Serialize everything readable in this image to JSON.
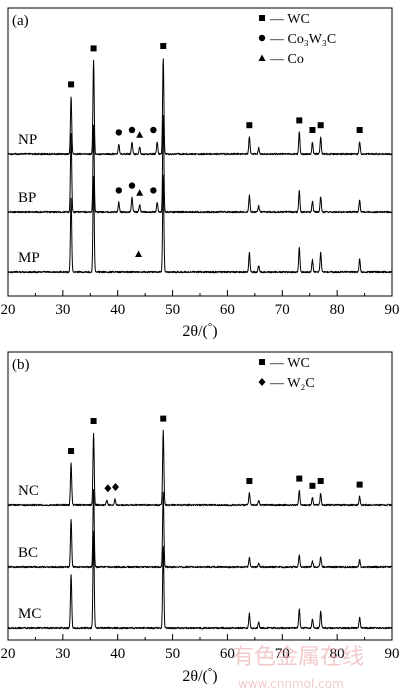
{
  "chart_data": [
    {
      "type": "line",
      "panel_label": "(a)",
      "xlabel_main": "2θ/(",
      "xlabel_unit": "°",
      "xlabel_end": ")",
      "ylabel": "",
      "xlim": [
        20,
        90
      ],
      "x_ticks": [
        "20",
        "30",
        "40",
        "50",
        "60",
        "70",
        "80",
        "90"
      ],
      "grid": false,
      "legend_position": "top-right",
      "legend": [
        {
          "marker": "square",
          "text": "— WC"
        },
        {
          "marker": "circle",
          "text": "— Co₃W₃C"
        },
        {
          "marker": "triangle",
          "text": "— Co"
        }
      ],
      "series": [
        {
          "name": "NP",
          "peaks": [
            {
              "x": 31.5,
              "h": 0.48
            },
            {
              "x": 35.6,
              "h": 0.78
            },
            {
              "x": 40.2,
              "h": 0.08
            },
            {
              "x": 42.6,
              "h": 0.1
            },
            {
              "x": 44.0,
              "h": 0.06
            },
            {
              "x": 47.2,
              "h": 0.1
            },
            {
              "x": 48.3,
              "h": 0.8
            },
            {
              "x": 64.0,
              "h": 0.14
            },
            {
              "x": 65.7,
              "h": 0.05
            },
            {
              "x": 73.1,
              "h": 0.18
            },
            {
              "x": 75.5,
              "h": 0.1
            },
            {
              "x": 77.0,
              "h": 0.14
            },
            {
              "x": 84.1,
              "h": 0.1
            }
          ],
          "markers": [
            {
              "x": 31.5,
              "type": "square"
            },
            {
              "x": 35.6,
              "type": "square"
            },
            {
              "x": 40.2,
              "type": "circle"
            },
            {
              "x": 42.6,
              "type": "circle"
            },
            {
              "x": 44.0,
              "type": "triangle"
            },
            {
              "x": 46.5,
              "type": "circle"
            },
            {
              "x": 48.3,
              "type": "square"
            },
            {
              "x": 64.0,
              "type": "square"
            },
            {
              "x": 73.1,
              "type": "square"
            },
            {
              "x": 75.5,
              "type": "square"
            },
            {
              "x": 77.0,
              "type": "square"
            },
            {
              "x": 84.1,
              "type": "square"
            }
          ]
        },
        {
          "name": "BP",
          "peaks": [
            {
              "x": 31.5,
              "h": 0.65
            },
            {
              "x": 35.6,
              "h": 0.72
            },
            {
              "x": 40.2,
              "h": 0.08
            },
            {
              "x": 42.6,
              "h": 0.12
            },
            {
              "x": 44.0,
              "h": 0.06
            },
            {
              "x": 47.2,
              "h": 0.08
            },
            {
              "x": 48.3,
              "h": 0.8
            },
            {
              "x": 64.0,
              "h": 0.14
            },
            {
              "x": 65.7,
              "h": 0.05
            },
            {
              "x": 73.1,
              "h": 0.18
            },
            {
              "x": 75.5,
              "h": 0.09
            },
            {
              "x": 77.0,
              "h": 0.13
            },
            {
              "x": 84.1,
              "h": 0.1
            }
          ],
          "markers": [
            {
              "x": 40.2,
              "type": "circle"
            },
            {
              "x": 42.6,
              "type": "circle"
            },
            {
              "x": 44.0,
              "type": "triangle"
            },
            {
              "x": 46.5,
              "type": "circle"
            }
          ]
        },
        {
          "name": "MP",
          "peaks": [
            {
              "x": 31.5,
              "h": 0.62
            },
            {
              "x": 35.6,
              "h": 0.8
            },
            {
              "x": 48.3,
              "h": 0.8
            },
            {
              "x": 64.0,
              "h": 0.16
            },
            {
              "x": 65.7,
              "h": 0.05
            },
            {
              "x": 73.1,
              "h": 0.2
            },
            {
              "x": 75.5,
              "h": 0.1
            },
            {
              "x": 77.0,
              "h": 0.16
            },
            {
              "x": 84.1,
              "h": 0.11
            }
          ],
          "markers": [
            {
              "x": 43.8,
              "type": "triangle"
            }
          ]
        }
      ]
    },
    {
      "type": "line",
      "panel_label": "(b)",
      "xlabel_main": "2θ/(",
      "xlabel_unit": "°",
      "xlabel_end": ")",
      "ylabel": "",
      "xlim": [
        20,
        90
      ],
      "x_ticks": [
        "20",
        "30",
        "40",
        "50",
        "60",
        "70",
        "80",
        "90"
      ],
      "grid": false,
      "legend_position": "top-right",
      "legend": [
        {
          "marker": "square",
          "text": "— WC"
        },
        {
          "marker": "diamond",
          "text": "— W₂C"
        }
      ],
      "series": [
        {
          "name": "NC",
          "peaks": [
            {
              "x": 31.5,
              "h": 0.35
            },
            {
              "x": 35.6,
              "h": 0.6
            },
            {
              "x": 38.0,
              "h": 0.04
            },
            {
              "x": 39.5,
              "h": 0.05
            },
            {
              "x": 48.3,
              "h": 0.62
            },
            {
              "x": 64.0,
              "h": 0.1
            },
            {
              "x": 65.7,
              "h": 0.04
            },
            {
              "x": 73.1,
              "h": 0.12
            },
            {
              "x": 75.5,
              "h": 0.06
            },
            {
              "x": 77.0,
              "h": 0.1
            },
            {
              "x": 84.1,
              "h": 0.07
            }
          ],
          "markers": [
            {
              "x": 31.5,
              "type": "square"
            },
            {
              "x": 35.6,
              "type": "square"
            },
            {
              "x": 38.2,
              "type": "diamond"
            },
            {
              "x": 39.6,
              "type": "diamond"
            },
            {
              "x": 48.3,
              "type": "square"
            },
            {
              "x": 64.0,
              "type": "square"
            },
            {
              "x": 73.1,
              "type": "square"
            },
            {
              "x": 75.5,
              "type": "square"
            },
            {
              "x": 77.0,
              "type": "square"
            },
            {
              "x": 84.1,
              "type": "square"
            }
          ]
        },
        {
          "name": "BC",
          "peaks": [
            {
              "x": 31.5,
              "h": 0.4
            },
            {
              "x": 35.6,
              "h": 0.65
            },
            {
              "x": 48.3,
              "h": 0.62
            },
            {
              "x": 64.0,
              "h": 0.08
            },
            {
              "x": 65.7,
              "h": 0.03
            },
            {
              "x": 73.1,
              "h": 0.1
            },
            {
              "x": 75.5,
              "h": 0.05
            },
            {
              "x": 77.0,
              "h": 0.08
            },
            {
              "x": 84.1,
              "h": 0.06
            }
          ],
          "markers": []
        },
        {
          "name": "MC",
          "peaks": [
            {
              "x": 31.5,
              "h": 0.45
            },
            {
              "x": 35.6,
              "h": 0.8
            },
            {
              "x": 48.3,
              "h": 0.68
            },
            {
              "x": 64.0,
              "h": 0.12
            },
            {
              "x": 65.7,
              "h": 0.05
            },
            {
              "x": 73.1,
              "h": 0.16
            },
            {
              "x": 75.5,
              "h": 0.08
            },
            {
              "x": 77.0,
              "h": 0.14
            },
            {
              "x": 84.1,
              "h": 0.09
            }
          ],
          "markers": []
        }
      ]
    }
  ],
  "watermark": {
    "line1": "有色金属在线",
    "line2": "www.cnnmol.com"
  }
}
